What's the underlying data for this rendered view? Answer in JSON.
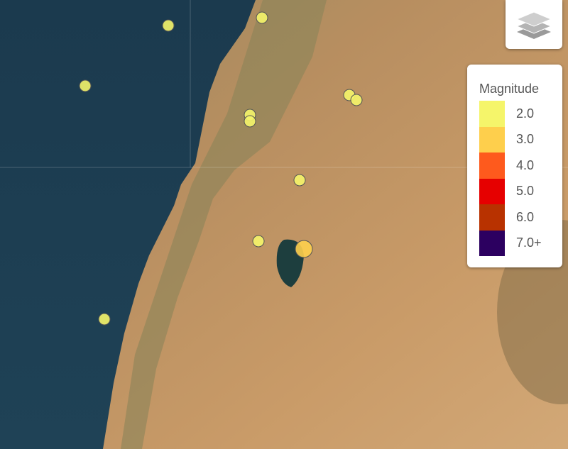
{
  "map": {
    "colors": {
      "sea": "#1e3f52",
      "land": "#b98a5a"
    },
    "earthquakes": [
      {
        "lon_lat_hint": "sea-north",
        "magnitude": 2.0
      },
      {
        "lon_lat_hint": "coast-north",
        "magnitude": 2.0
      },
      {
        "lon_lat_hint": "sea-west",
        "magnitude": 2.0
      },
      {
        "lon_lat_hint": "inland-1",
        "magnitude": 2.0
      },
      {
        "lon_lat_hint": "inland-2",
        "magnitude": 2.0
      },
      {
        "lon_lat_hint": "east-1",
        "magnitude": 2.0
      },
      {
        "lon_lat_hint": "east-2",
        "magnitude": 2.0
      },
      {
        "lon_lat_hint": "jordan-valley",
        "magnitude": 2.0
      },
      {
        "lon_lat_hint": "galilee-west",
        "magnitude": 2.0
      },
      {
        "lon_lat_hint": "sea-of-galilee",
        "magnitude": 3.0
      },
      {
        "lon_lat_hint": "sea-south",
        "magnitude": 2.0
      }
    ]
  },
  "layers_control": {
    "icon": "layers-icon"
  },
  "legend": {
    "title": "Magnitude",
    "items": [
      {
        "label": "2.0",
        "color": "#f5f56a"
      },
      {
        "label": "3.0",
        "color": "#fecf4c"
      },
      {
        "label": "4.0",
        "color": "#fe5a1d"
      },
      {
        "label": "5.0",
        "color": "#e60000"
      },
      {
        "label": "6.0",
        "color": "#b83200"
      },
      {
        "label": "7.0+",
        "color": "#2c0060"
      }
    ]
  }
}
